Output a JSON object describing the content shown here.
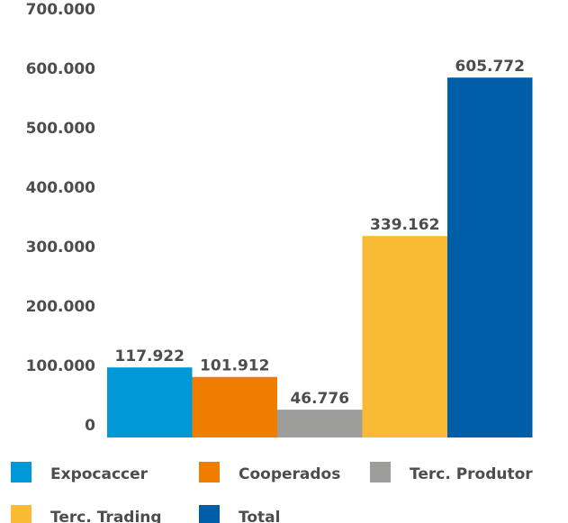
{
  "chart_data": {
    "type": "bar",
    "categories": [
      "Expocaccer",
      "Cooperados",
      "Terc. Produtor",
      "Terc. Trading",
      "Total"
    ],
    "values": [
      117922,
      101912,
      46776,
      339162,
      605772
    ],
    "value_labels": [
      "117.922",
      "101.912",
      "46.776",
      "339.162",
      "605.772"
    ],
    "colors": [
      "#0098d6",
      "#ef7d00",
      "#9d9d9c",
      "#fbba34",
      "#005da8"
    ],
    "ylim": [
      0,
      700000
    ],
    "yticks": [
      0,
      100000,
      200000,
      300000,
      400000,
      500000,
      600000,
      700000
    ],
    "ytick_labels": [
      "0",
      "100.000",
      "200.000",
      "300.000",
      "400.000",
      "500.000",
      "600.000",
      "700.000"
    ],
    "title": "",
    "xlabel": "",
    "ylabel": "",
    "grid": false,
    "legend": {
      "placement": "bottom",
      "entries": [
        "Expocaccer",
        "Cooperados",
        "Terc. Produtor",
        "Terc. Trading",
        "Total"
      ]
    }
  }
}
